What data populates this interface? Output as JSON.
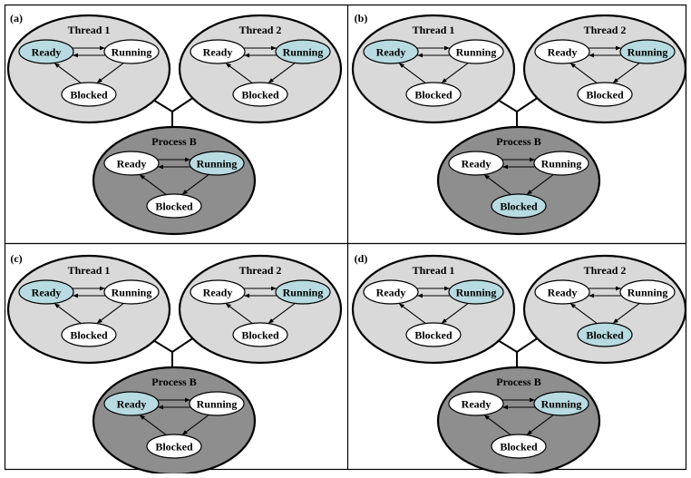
{
  "colors": {
    "background": "#ffffff",
    "frame": "#000000",
    "thread_fill": "#d9d9d9",
    "process_fill": "#8e8e8e",
    "state_fill": "#ffffff",
    "state_active_fill": "#b7dbe0",
    "stroke": "#000000"
  },
  "panels": [
    {
      "label": "(a)",
      "thread1": {
        "title": "Thread 1",
        "active": "Ready"
      },
      "thread2": {
        "title": "Thread 2",
        "active": "Running"
      },
      "process": {
        "title": "Process B",
        "active": "Running"
      }
    },
    {
      "label": "(b)",
      "thread1": {
        "title": "Thread 1",
        "active": "Ready"
      },
      "thread2": {
        "title": "Thread 2",
        "active": "Running"
      },
      "process": {
        "title": "Process B",
        "active": "Blocked"
      }
    },
    {
      "label": "(c)",
      "thread1": {
        "title": "Thread 1",
        "active": "Ready"
      },
      "thread2": {
        "title": "Thread 2",
        "active": "Running"
      },
      "process": {
        "title": "Process B",
        "active": "Ready"
      }
    },
    {
      "label": "(d)",
      "thread1": {
        "title": "Thread 1",
        "active": "Running"
      },
      "thread2": {
        "title": "Thread 2",
        "active": "Blocked"
      },
      "process": {
        "title": "Process B",
        "active": "Running"
      }
    }
  ],
  "states": {
    "ready": "Ready",
    "running": "Running",
    "blocked": "Blocked"
  }
}
